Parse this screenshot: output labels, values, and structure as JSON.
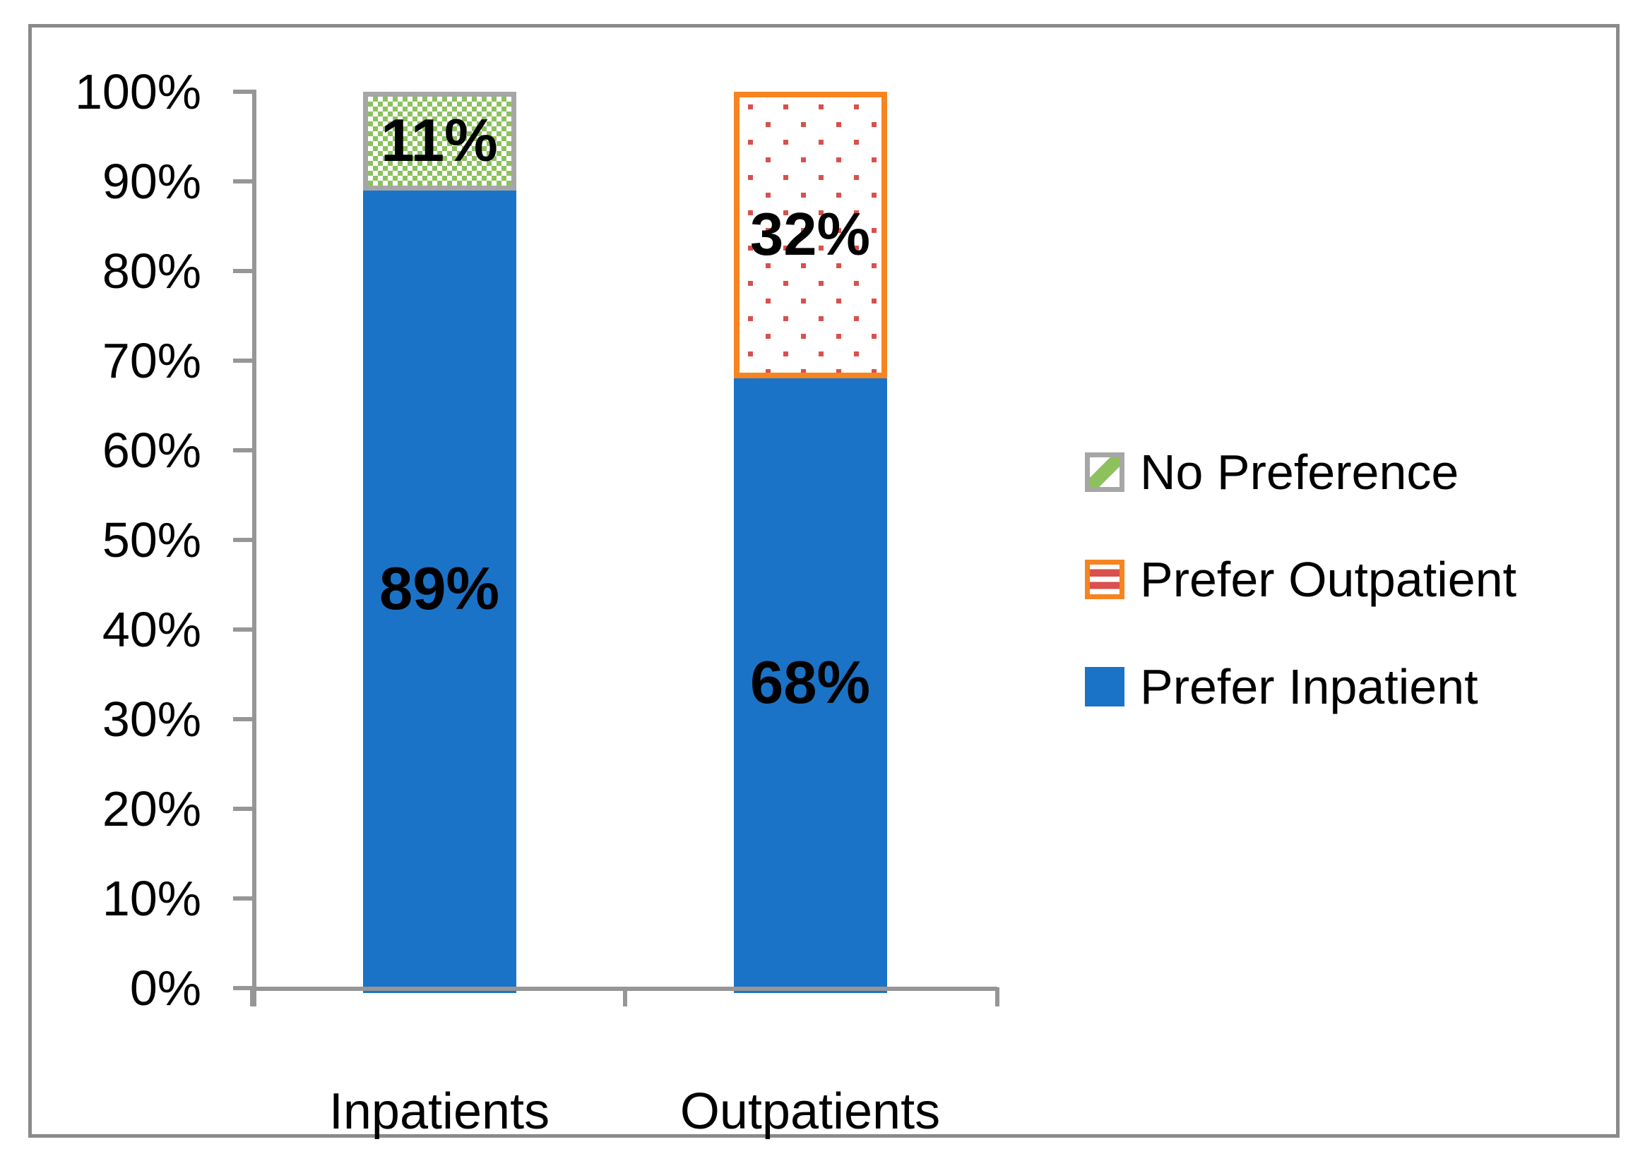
{
  "chart_data": {
    "type": "bar",
    "subtype": "stacked-100-percent",
    "orientation": "vertical",
    "title": "",
    "xlabel": "",
    "ylabel": "",
    "grid": false,
    "categories": [
      "Inpatients",
      "Outpatients"
    ],
    "series": [
      {
        "name": "Prefer Inpatient",
        "values": [
          89,
          68
        ],
        "labels": [
          "89%",
          "68%"
        ],
        "style": "solid-blue"
      },
      {
        "name": "Prefer Outpatient",
        "values": [
          0,
          32
        ],
        "labels": [
          "",
          "32%"
        ],
        "style": "red-dots-on-white-orange-border"
      },
      {
        "name": "No Preference",
        "values": [
          11,
          0
        ],
        "labels": [
          "11%",
          ""
        ],
        "style": "green-checker-white-gray-border"
      }
    ],
    "ylim": [
      0,
      100
    ],
    "ytick_step": 10,
    "ytick_labels": [
      "100%",
      "90%",
      "80%",
      "70%",
      "60%",
      "50%",
      "40%",
      "30%",
      "20%",
      "10%",
      "0%"
    ],
    "legend_position": "right-middle",
    "legend": [
      {
        "label": "No Preference",
        "swatch": "no-preference-pattern-icon",
        "swatch_class": "sw sw-no-preference"
      },
      {
        "label": "Prefer Outpatient",
        "swatch": "prefer-outpatient-pattern-icon",
        "swatch_class": "sw sw-prefer-outpatient"
      },
      {
        "label": "Prefer Inpatient",
        "swatch": "prefer-inpatient-solid-icon",
        "swatch_class": "sw sw-prefer-inpatient"
      }
    ],
    "colors": {
      "prefer_inpatient_blue": "#1B73C7",
      "no_preference_green": "#8CC15E",
      "no_preference_border_gray": "#A6A6A6",
      "prefer_outpatient_dot_red": "#D9504C",
      "prefer_outpatient_border_orange": "#F68420",
      "axis_gray": "#969696",
      "outer_frame_gray": "#8A8A8A",
      "text_black": "#000000"
    }
  }
}
